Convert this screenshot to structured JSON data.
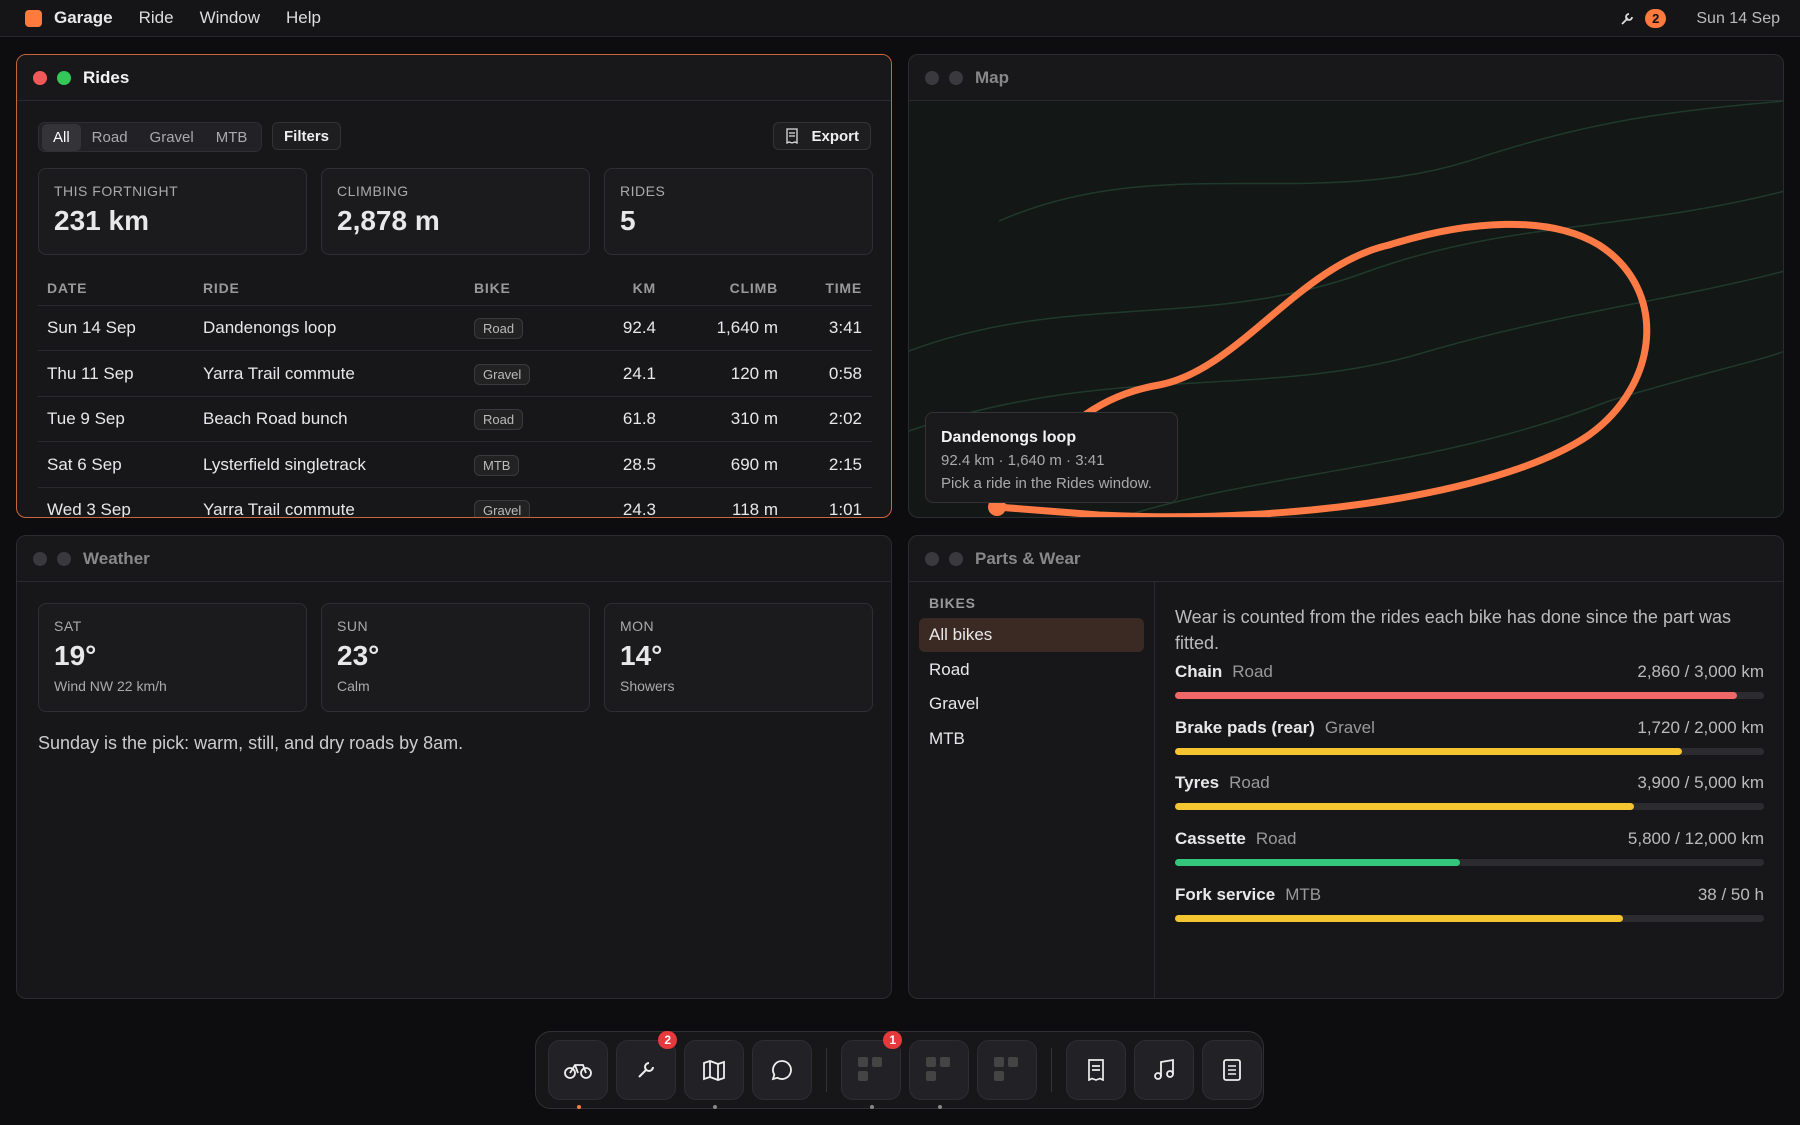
{
  "menubar": {
    "app": "Garage",
    "menus": [
      "Ride",
      "Window",
      "Help"
    ],
    "badge": "2",
    "date": "Sun 14 Sep"
  },
  "rides": {
    "title": "Rides",
    "filters": [
      "All",
      "Road",
      "Gravel",
      "MTB"
    ],
    "filters_button": "Filters",
    "export": "Export",
    "stats": [
      {
        "label": "THIS FORTNIGHT",
        "value": "231 km"
      },
      {
        "label": "CLIMBING",
        "value": "2,878 m"
      },
      {
        "label": "RIDES",
        "value": "5"
      }
    ],
    "columns": [
      "DATE",
      "RIDE",
      "BIKE",
      "KM",
      "CLIMB",
      "TIME"
    ],
    "rows": [
      [
        "Sun 14 Sep",
        "Dandenongs loop",
        "Road",
        "92.4",
        "1,640 m",
        "3:41"
      ],
      [
        "Thu 11 Sep",
        "Yarra Trail commute",
        "Gravel",
        "24.1",
        "120 m",
        "0:58"
      ],
      [
        "Tue 9 Sep",
        "Beach Road bunch",
        "Road",
        "61.8",
        "310 m",
        "2:02"
      ],
      [
        "Sat 6 Sep",
        "Lysterfield singletrack",
        "MTB",
        "28.5",
        "690 m",
        "2:15"
      ],
      [
        "Wed 3 Sep",
        "Yarra Trail commute",
        "Gravel",
        "24.3",
        "118 m",
        "1:01"
      ]
    ]
  },
  "map": {
    "title": "Map",
    "tooltip": {
      "title": "Dandenongs loop",
      "detail": "92.4 km · 1,640 m · 3:41",
      "hint": "Pick a ride in the Rides window."
    }
  },
  "weather": {
    "title": "Weather",
    "days": [
      {
        "day": "SAT",
        "temp": "19°",
        "note": "Wind NW 22 km/h"
      },
      {
        "day": "SUN",
        "temp": "23°",
        "note": "Calm"
      },
      {
        "day": "MON",
        "temp": "14°",
        "note": "Showers"
      }
    ],
    "summary": "Sunday is the pick: warm, still, and dry roads by 8am."
  },
  "parts": {
    "title": "Parts & Wear",
    "bikes_label": "BIKES",
    "bikes": [
      "All bikes",
      "Road",
      "Gravel",
      "MTB"
    ],
    "intro": "Wear is counted from the rides each bike has done since the part was fitted.",
    "items": [
      {
        "name": "Chain",
        "bike": "Road",
        "usage": "2,860 / 3,000 km",
        "used": 2860,
        "limit": 3000,
        "color": "#f0676a"
      },
      {
        "name": "Brake pads (rear)",
        "bike": "Gravel",
        "usage": "1,720 / 2,000 km",
        "used": 1720,
        "limit": 2000,
        "color": "#f5c431"
      },
      {
        "name": "Tyres",
        "bike": "Road",
        "usage": "3,900 / 5,000 km",
        "used": 3900,
        "limit": 5000,
        "color": "#f5c431"
      },
      {
        "name": "Cassette",
        "bike": "Road",
        "usage": "5,800 / 12,000 km",
        "used": 5800,
        "limit": 12000,
        "color": "#34c77b"
      },
      {
        "name": "Fork service",
        "bike": "MTB",
        "usage": "38 / 50 h",
        "used": 38,
        "limit": 50,
        "color": "#f5c431"
      }
    ]
  },
  "dock": {
    "badges": [
      "2",
      "1"
    ]
  }
}
